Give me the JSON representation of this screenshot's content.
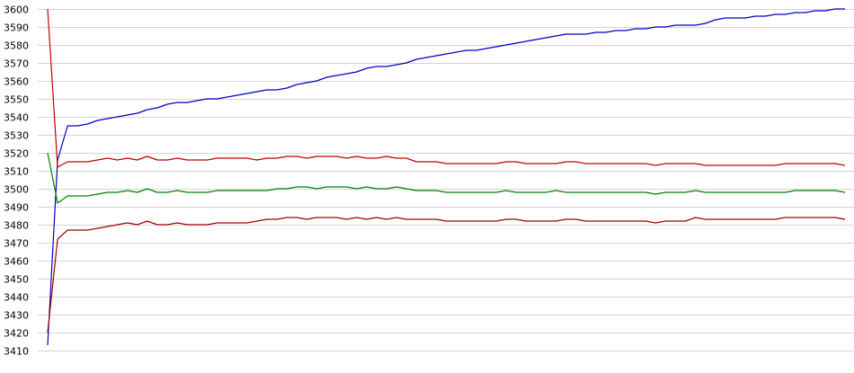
{
  "chart_data": {
    "type": "line",
    "title": "",
    "xlabel": "",
    "ylabel": "",
    "ylim": [
      3410,
      3600
    ],
    "yticks": [
      3410,
      3420,
      3430,
      3440,
      3450,
      3460,
      3470,
      3480,
      3490,
      3500,
      3510,
      3520,
      3530,
      3540,
      3550,
      3560,
      3570,
      3580,
      3590,
      3600
    ],
    "grid": "horizontal",
    "legend": "none",
    "x": [
      0,
      1,
      2,
      3,
      4,
      5,
      6,
      7,
      8,
      9,
      10,
      11,
      12,
      13,
      14,
      15,
      16,
      17,
      18,
      19,
      20,
      21,
      22,
      23,
      24,
      25,
      26,
      27,
      28,
      29,
      30,
      31,
      32,
      33,
      34,
      35,
      36,
      37,
      38,
      39,
      40,
      41,
      42,
      43,
      44,
      45,
      46,
      47,
      48,
      49,
      50,
      51,
      52,
      53,
      54,
      55,
      56,
      57,
      58,
      59,
      60,
      61,
      62,
      63,
      64,
      65,
      66,
      67,
      68,
      69,
      70,
      71,
      72,
      73,
      74,
      75,
      76,
      77,
      78,
      79,
      80
    ],
    "series": [
      {
        "color": "#0000c0",
        "values": [
          3413,
          3516,
          3535,
          3535,
          3536,
          3538,
          3539,
          3540,
          3541,
          3542,
          3544,
          3545,
          3547,
          3548,
          3548,
          3549,
          3550,
          3550,
          3551,
          3552,
          3553,
          3554,
          3555,
          3555,
          3556,
          3558,
          3559,
          3560,
          3562,
          3563,
          3564,
          3565,
          3567,
          3568,
          3568,
          3569,
          3570,
          3572,
          3573,
          3574,
          3575,
          3576,
          3577,
          3577,
          3578,
          3579,
          3580,
          3581,
          3582,
          3583,
          3584,
          3585,
          3586,
          3586,
          3586,
          3587,
          3587,
          3588,
          3588,
          3589,
          3589,
          3590,
          3590,
          3591,
          3591,
          3591,
          3592,
          3594,
          3595,
          3595,
          3595,
          3596,
          3596,
          3597,
          3597,
          3598,
          3598,
          3599,
          3599,
          3600,
          3600
        ]
      },
      {
        "color": "#c00000",
        "values": [
          3600,
          3512,
          3515,
          3515,
          3515,
          3516,
          3517,
          3516,
          3517,
          3516,
          3518,
          3516,
          3516,
          3517,
          3516,
          3516,
          3516,
          3517,
          3517,
          3517,
          3517,
          3516,
          3517,
          3517,
          3518,
          3518,
          3517,
          3518,
          3518,
          3518,
          3517,
          3518,
          3517,
          3517,
          3518,
          3517,
          3517,
          3515,
          3515,
          3515,
          3514,
          3514,
          3514,
          3514,
          3514,
          3514,
          3515,
          3515,
          3514,
          3514,
          3514,
          3514,
          3515,
          3515,
          3514,
          3514,
          3514,
          3514,
          3514,
          3514,
          3514,
          3513,
          3514,
          3514,
          3514,
          3514,
          3513,
          3513,
          3513,
          3513,
          3513,
          3513,
          3513,
          3513,
          3514,
          3514,
          3514,
          3514,
          3514,
          3514,
          3513
        ]
      },
      {
        "color": "#008000",
        "values": [
          3520,
          3492,
          3496,
          3496,
          3496,
          3497,
          3498,
          3498,
          3499,
          3498,
          3500,
          3498,
          3498,
          3499,
          3498,
          3498,
          3498,
          3499,
          3499,
          3499,
          3499,
          3499,
          3499,
          3500,
          3500,
          3501,
          3501,
          3500,
          3501,
          3501,
          3501,
          3500,
          3501,
          3500,
          3500,
          3501,
          3500,
          3499,
          3499,
          3499,
          3498,
          3498,
          3498,
          3498,
          3498,
          3498,
          3499,
          3498,
          3498,
          3498,
          3498,
          3499,
          3498,
          3498,
          3498,
          3498,
          3498,
          3498,
          3498,
          3498,
          3498,
          3497,
          3498,
          3498,
          3498,
          3499,
          3498,
          3498,
          3498,
          3498,
          3498,
          3498,
          3498,
          3498,
          3498,
          3499,
          3499,
          3499,
          3499,
          3499,
          3498
        ]
      },
      {
        "color": "#a00000",
        "values": [
          3420,
          3472,
          3477,
          3477,
          3477,
          3478,
          3479,
          3480,
          3481,
          3480,
          3482,
          3480,
          3480,
          3481,
          3480,
          3480,
          3480,
          3481,
          3481,
          3481,
          3481,
          3482,
          3483,
          3483,
          3484,
          3484,
          3483,
          3484,
          3484,
          3484,
          3483,
          3484,
          3483,
          3484,
          3483,
          3484,
          3483,
          3483,
          3483,
          3483,
          3482,
          3482,
          3482,
          3482,
          3482,
          3482,
          3483,
          3483,
          3482,
          3482,
          3482,
          3482,
          3483,
          3483,
          3482,
          3482,
          3482,
          3482,
          3482,
          3482,
          3482,
          3481,
          3482,
          3482,
          3482,
          3484,
          3483,
          3483,
          3483,
          3483,
          3483,
          3483,
          3483,
          3483,
          3484,
          3484,
          3484,
          3484,
          3484,
          3484,
          3483
        ]
      }
    ]
  }
}
